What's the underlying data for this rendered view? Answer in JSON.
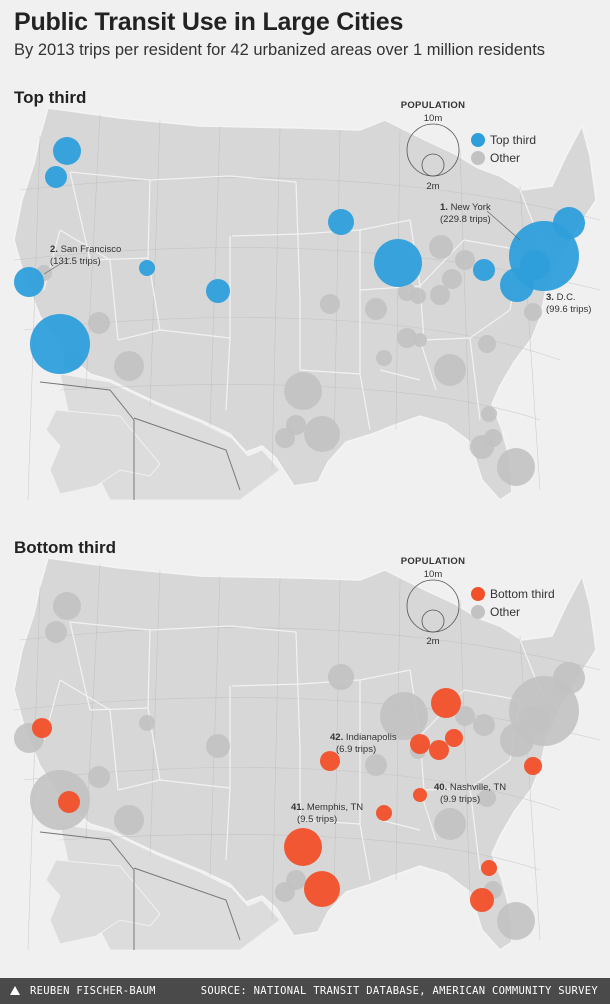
{
  "header": {
    "title": "Public Transit Use in Large Cities",
    "subtitle": "By 2013 trips per resident for 42 urbanized areas over 1 million residents"
  },
  "colors": {
    "top": "#2e9fdb",
    "bottom": "#f2502a",
    "other": "#c2c2c2",
    "land": "#d7d7d7",
    "background": "#f0f0f0",
    "footer": "#4a4a4a"
  },
  "legend": {
    "title": "POPULATION",
    "large": "10m",
    "small": "2m",
    "other": "Other"
  },
  "panels": [
    {
      "id": "top",
      "label": "Top third",
      "legend_label": "Top third",
      "annotations": [
        {
          "rank": "1.",
          "name": "New York",
          "detail": "(229.8 trips)"
        },
        {
          "rank": "2.",
          "name": "San Francisco",
          "detail": "(131.5 trips)"
        },
        {
          "rank": "3.",
          "name": "D.C.",
          "detail": "(99.6 trips)"
        }
      ]
    },
    {
      "id": "bottom",
      "label": "Bottom third",
      "legend_label": "Bottom third",
      "annotations": [
        {
          "rank": "42.",
          "name": "Indianapolis",
          "detail": "(6.9 trips)"
        },
        {
          "rank": "40.",
          "name": "Nashville, TN",
          "detail": "(9.9 trips)"
        },
        {
          "rank": "41.",
          "name": "Memphis, TN",
          "detail": "(9.5 trips)"
        }
      ]
    }
  ],
  "footer": {
    "author": "REUBEN FISCHER-BAUM",
    "source": "SOURCE: NATIONAL TRANSIT DATABASE, AMERICAN COMMUNITY SURVEY"
  }
}
